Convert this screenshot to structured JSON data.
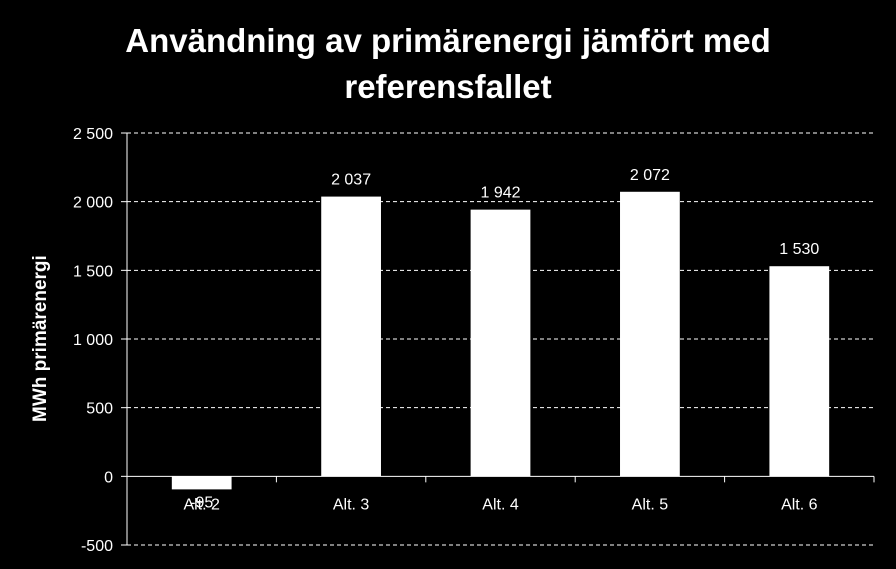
{
  "chart_data": {
    "type": "bar",
    "title_lines": [
      "Användning av primärenergi jämfört med",
      "referensfallet"
    ],
    "ylabel": "MWh primärenergi",
    "xlabel": "",
    "categories": [
      "Alt. 2",
      "Alt. 3",
      "Alt. 4",
      "Alt. 5",
      "Alt. 6"
    ],
    "values": [
      -95,
      2037,
      1942,
      2072,
      1530
    ],
    "value_labels": [
      "-95",
      "2 037",
      "1 942",
      "2 072",
      "1 530"
    ],
    "ylim": [
      -500,
      2500
    ],
    "yticks": [
      -500,
      0,
      500,
      1000,
      1500,
      2000,
      2500
    ],
    "ytick_labels": [
      "-500",
      "0",
      "500",
      "1 000",
      "1 500",
      "2 000",
      "2 500"
    ],
    "grid": true,
    "bar_color": "#ffffff",
    "background": "#000000"
  }
}
